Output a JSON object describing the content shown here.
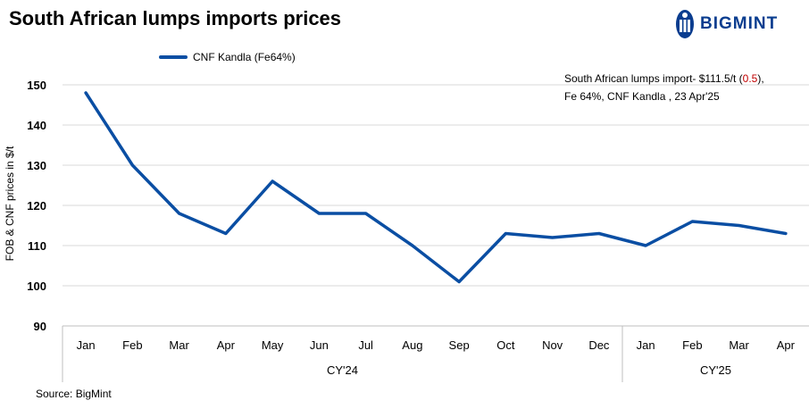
{
  "title": "South African lumps imports prices",
  "brand": "BIGMINT",
  "annotation": {
    "prefix": "South African lumps import- $111.5/t (",
    "change": "0.5",
    "suffix": "),",
    "line2": "Fe 64%, CNF Kandla , 23 Apr'25"
  },
  "source": "Source: BigMint",
  "colors": {
    "series": "#0a4ea3",
    "annotation_change": "#c00000",
    "brand": "#0a3d8f"
  },
  "chart_data": {
    "type": "line",
    "title": "South African lumps imports prices",
    "ylabel": "FOB & CNF prices in $/t",
    "xlabel": "",
    "ylim": [
      90,
      150
    ],
    "yticks": [
      90,
      100,
      110,
      120,
      130,
      140,
      150
    ],
    "grid": true,
    "legend_position": "top-left",
    "categories": [
      "Jan",
      "Feb",
      "Mar",
      "Apr",
      "May",
      "Jun",
      "Jul",
      "Aug",
      "Sep",
      "Oct",
      "Nov",
      "Dec",
      "Jan",
      "Feb",
      "Mar",
      "Apr"
    ],
    "groups": [
      {
        "label": "CY'24",
        "count": 12
      },
      {
        "label": "CY'25",
        "count": 4
      }
    ],
    "series": [
      {
        "name": "CNF Kandla (Fe64%)",
        "values": [
          148,
          130,
          118,
          113,
          126,
          118,
          118,
          110,
          101,
          113,
          112,
          113,
          110,
          116,
          115,
          113
        ]
      }
    ]
  }
}
